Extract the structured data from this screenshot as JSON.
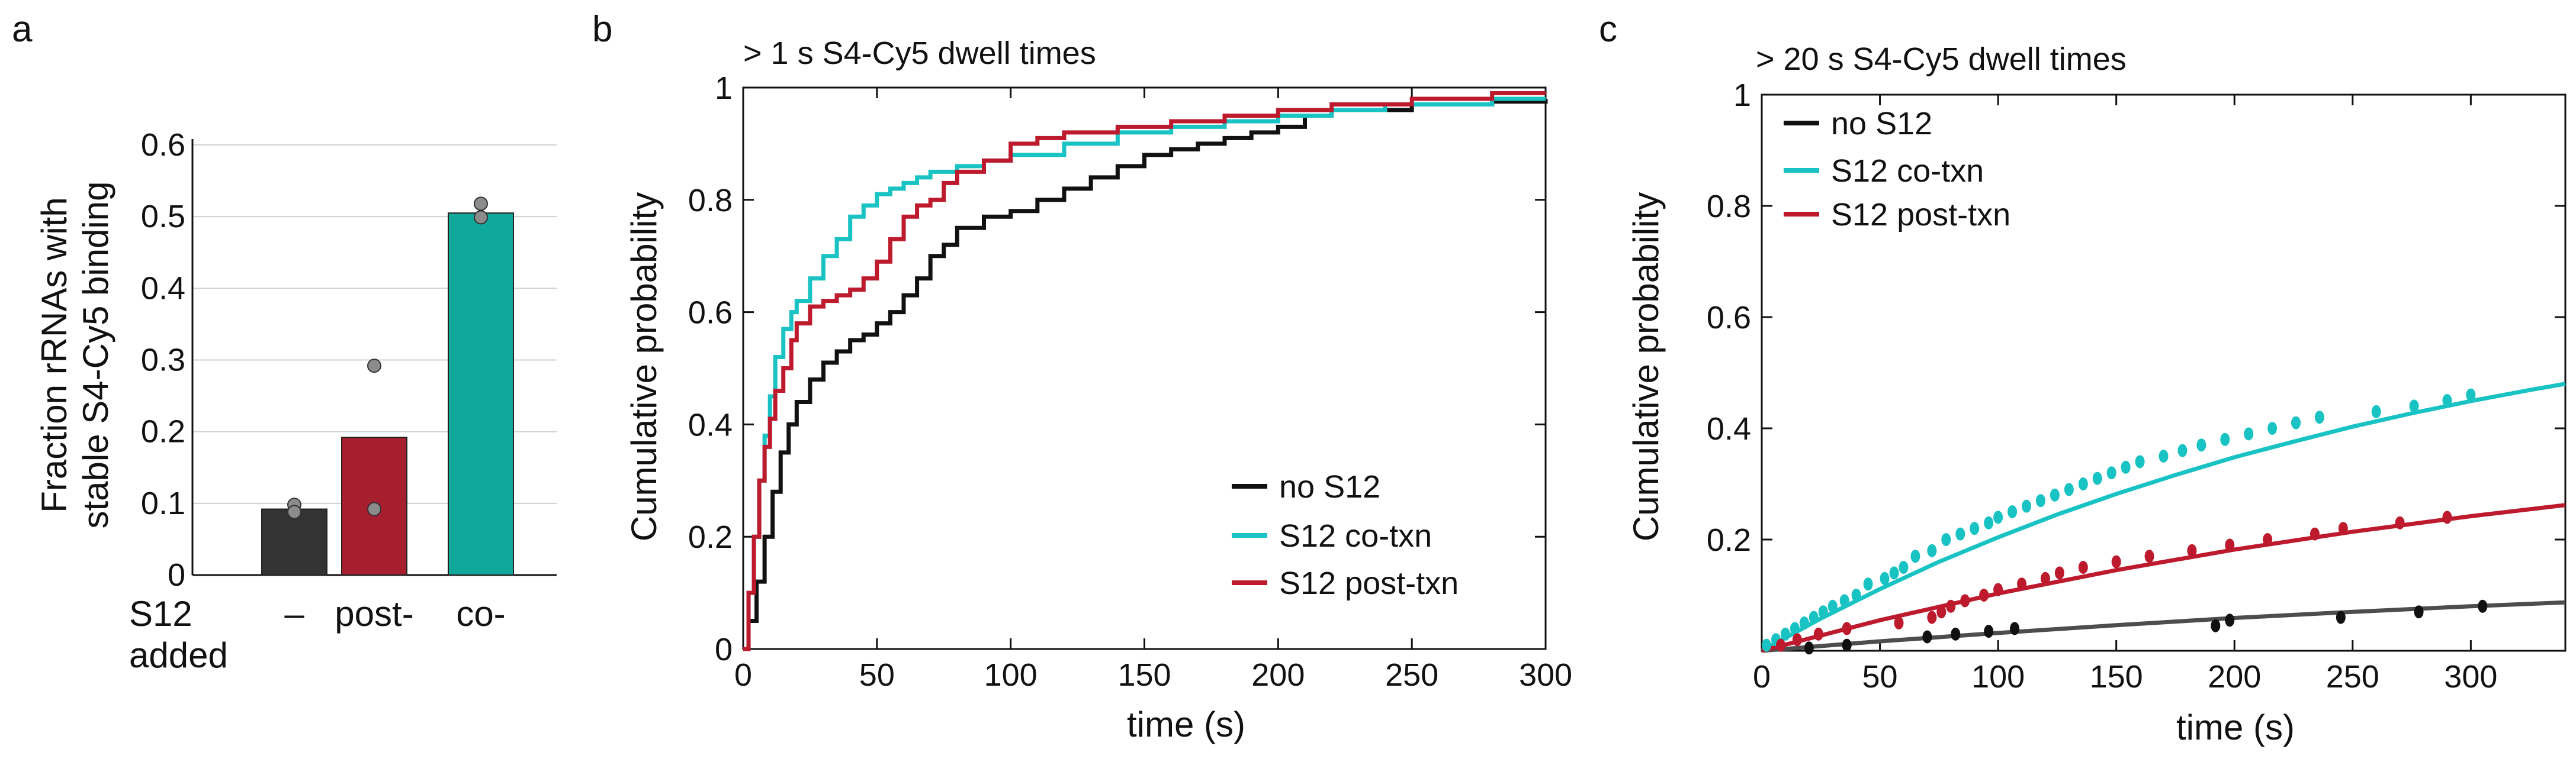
{
  "colors": {
    "no_s12": "#111111",
    "co_txn": "#19c3c3",
    "post_txn": "#bd1a2e",
    "bar_dark": "#333333",
    "bar_red": "#a71f2f",
    "bar_teal": "#10a89a",
    "fit_dark": "#4d4d4d"
  },
  "chart_data": [
    {
      "panel": "a",
      "type": "bar",
      "ylabel_line1": "Fraction rRNAs with",
      "ylabel_line2": "stable S4-Cy5 binding",
      "ylim": [
        0,
        0.6
      ],
      "yticks": [
        "0",
        "0.1",
        "0.2",
        "0.3",
        "0.4",
        "0.5",
        "0.6"
      ],
      "grid": true,
      "row_label_line1": "S12",
      "row_label_line2": "added",
      "categories": [
        "–",
        "post-",
        "co-"
      ],
      "values": [
        0.092,
        0.192,
        0.505
      ],
      "points": [
        [
          0.098,
          0.088
        ],
        [
          0.292,
          0.092
        ],
        [
          0.518,
          0.499
        ]
      ]
    },
    {
      "panel": "b",
      "type": "line",
      "step": true,
      "title": "> 1 s S4-Cy5 dwell times",
      "xlabel": "time (s)",
      "ylabel": "Cumulative probability",
      "xlim": [
        0,
        300
      ],
      "ylim": [
        0,
        1
      ],
      "xticks": [
        "0",
        "50",
        "100",
        "150",
        "200",
        "250",
        "300"
      ],
      "yticks": [
        "0",
        "0.2",
        "0.4",
        "0.6",
        "0.8",
        "1"
      ],
      "legend": [
        "no S12",
        "S12 co-txn",
        "S12 post-txn"
      ],
      "legend_position": "bottom-right",
      "series": [
        {
          "name": "no S12",
          "x": [
            0,
            2,
            5,
            8,
            11,
            14,
            17,
            20,
            25,
            30,
            35,
            40,
            45,
            50,
            55,
            60,
            65,
            70,
            75,
            80,
            90,
            100,
            110,
            120,
            130,
            140,
            150,
            160,
            170,
            180,
            190,
            200,
            210,
            220,
            250,
            280,
            300
          ],
          "y": [
            0,
            0.05,
            0.12,
            0.2,
            0.28,
            0.35,
            0.4,
            0.44,
            0.48,
            0.51,
            0.53,
            0.55,
            0.56,
            0.58,
            0.6,
            0.63,
            0.66,
            0.7,
            0.72,
            0.75,
            0.77,
            0.78,
            0.8,
            0.82,
            0.84,
            0.86,
            0.88,
            0.89,
            0.9,
            0.91,
            0.92,
            0.93,
            0.95,
            0.96,
            0.97,
            0.975,
            0.98
          ]
        },
        {
          "name": "S12 co-txn",
          "x": [
            0,
            2,
            4,
            6,
            8,
            10,
            12,
            15,
            18,
            20,
            25,
            30,
            35,
            40,
            45,
            50,
            55,
            60,
            65,
            70,
            80,
            90,
            100,
            120,
            140,
            160,
            180,
            200,
            220,
            240,
            260,
            280,
            300
          ],
          "y": [
            0,
            0.1,
            0.2,
            0.3,
            0.38,
            0.45,
            0.52,
            0.57,
            0.6,
            0.62,
            0.66,
            0.7,
            0.73,
            0.77,
            0.79,
            0.81,
            0.82,
            0.83,
            0.84,
            0.85,
            0.86,
            0.87,
            0.88,
            0.9,
            0.92,
            0.93,
            0.94,
            0.95,
            0.96,
            0.97,
            0.97,
            0.98,
            0.98
          ]
        },
        {
          "name": "S12 post-txn",
          "x": [
            0,
            2,
            4,
            6,
            8,
            10,
            12,
            15,
            18,
            20,
            25,
            30,
            35,
            40,
            45,
            50,
            55,
            60,
            65,
            70,
            75,
            80,
            90,
            100,
            110,
            120,
            140,
            160,
            180,
            200,
            220,
            250,
            280,
            300
          ],
          "y": [
            0,
            0.1,
            0.2,
            0.3,
            0.36,
            0.41,
            0.46,
            0.5,
            0.55,
            0.58,
            0.61,
            0.62,
            0.63,
            0.64,
            0.66,
            0.69,
            0.73,
            0.77,
            0.79,
            0.8,
            0.83,
            0.85,
            0.87,
            0.9,
            0.91,
            0.92,
            0.93,
            0.94,
            0.95,
            0.96,
            0.97,
            0.98,
            0.99,
            0.99
          ]
        }
      ]
    },
    {
      "panel": "c",
      "type": "scatter",
      "title": "> 20 s S4-Cy5 dwell times",
      "xlabel": "time (s)",
      "ylabel": "Cumulative probability",
      "xlim": [
        0,
        340
      ],
      "ylim": [
        0,
        1
      ],
      "xticks": [
        "0",
        "50",
        "100",
        "150",
        "200",
        "250",
        "300"
      ],
      "yticks": [
        "0.2",
        "0.4",
        "0.6",
        "0.8",
        "1"
      ],
      "legend": [
        "no S12",
        "S12 co-txn",
        "S12 post-txn"
      ],
      "legend_position": "top-left",
      "series": [
        {
          "name": "no S12",
          "points": [
            [
              20,
              0.005
            ],
            [
              36,
              0.01
            ],
            [
              70,
              0.025
            ],
            [
              82,
              0.03
            ],
            [
              96,
              0.035
            ],
            [
              107,
              0.04
            ],
            [
              192,
              0.045
            ],
            [
              198,
              0.055
            ],
            [
              245,
              0.06
            ],
            [
              278,
              0.07
            ],
            [
              305,
              0.08
            ]
          ],
          "fit_x": [
            0,
            50,
            100,
            150,
            200,
            250,
            300,
            340
          ],
          "fit_y": [
            0,
            0.017,
            0.032,
            0.046,
            0.059,
            0.07,
            0.08,
            0.087
          ]
        },
        {
          "name": "S12 co-txn",
          "points": [
            [
              2,
              0.01
            ],
            [
              6,
              0.02
            ],
            [
              10,
              0.03
            ],
            [
              14,
              0.04
            ],
            [
              18,
              0.05
            ],
            [
              22,
              0.06
            ],
            [
              26,
              0.07
            ],
            [
              30,
              0.08
            ],
            [
              35,
              0.09
            ],
            [
              40,
              0.1
            ],
            [
              45,
              0.12
            ],
            [
              52,
              0.13
            ],
            [
              56,
              0.14
            ],
            [
              60,
              0.15
            ],
            [
              65,
              0.17
            ],
            [
              72,
              0.18
            ],
            [
              78,
              0.2
            ],
            [
              84,
              0.21
            ],
            [
              90,
              0.22
            ],
            [
              96,
              0.23
            ],
            [
              100,
              0.24
            ],
            [
              106,
              0.25
            ],
            [
              112,
              0.26
            ],
            [
              118,
              0.27
            ],
            [
              124,
              0.28
            ],
            [
              130,
              0.29
            ],
            [
              136,
              0.3
            ],
            [
              142,
              0.31
            ],
            [
              148,
              0.32
            ],
            [
              154,
              0.33
            ],
            [
              160,
              0.34
            ],
            [
              170,
              0.35
            ],
            [
              178,
              0.36
            ],
            [
              186,
              0.37
            ],
            [
              196,
              0.38
            ],
            [
              206,
              0.39
            ],
            [
              216,
              0.4
            ],
            [
              226,
              0.41
            ],
            [
              236,
              0.42
            ],
            [
              260,
              0.43
            ],
            [
              276,
              0.44
            ],
            [
              290,
              0.45
            ],
            [
              300,
              0.46
            ]
          ],
          "fit_x": [
            0,
            25,
            50,
            75,
            100,
            125,
            150,
            175,
            200,
            225,
            250,
            275,
            300,
            325,
            340
          ],
          "fit_y": [
            0,
            0.058,
            0.111,
            0.16,
            0.204,
            0.245,
            0.282,
            0.316,
            0.348,
            0.376,
            0.403,
            0.427,
            0.449,
            0.469,
            0.48
          ]
        },
        {
          "name": "S12 post-txn",
          "points": [
            [
              8,
              0.01
            ],
            [
              15,
              0.02
            ],
            [
              24,
              0.03
            ],
            [
              36,
              0.04
            ],
            [
              58,
              0.05
            ],
            [
              72,
              0.06
            ],
            [
              76,
              0.07
            ],
            [
              80,
              0.08
            ],
            [
              86,
              0.09
            ],
            [
              94,
              0.1
            ],
            [
              100,
              0.11
            ],
            [
              110,
              0.12
            ],
            [
              120,
              0.13
            ],
            [
              126,
              0.14
            ],
            [
              136,
              0.15
            ],
            [
              150,
              0.16
            ],
            [
              164,
              0.17
            ],
            [
              182,
              0.18
            ],
            [
              198,
              0.19
            ],
            [
              214,
              0.2
            ],
            [
              234,
              0.21
            ],
            [
              246,
              0.22
            ],
            [
              270,
              0.23
            ],
            [
              290,
              0.24
            ]
          ],
          "fit_x": [
            0,
            50,
            100,
            150,
            200,
            250,
            300,
            340
          ],
          "fit_y": [
            0,
            0.055,
            0.103,
            0.145,
            0.182,
            0.214,
            0.242,
            0.262
          ]
        }
      ]
    }
  ],
  "panels": {
    "a": {
      "letter": "a"
    },
    "b": {
      "letter": "b"
    },
    "c": {
      "letter": "c"
    }
  }
}
